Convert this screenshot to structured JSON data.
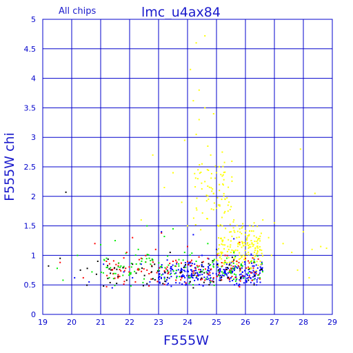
{
  "chart_data": {
    "type": "scatter",
    "title": "lmc_u4ax84",
    "subtitle": "All chips",
    "xlabel": "F555W",
    "ylabel": "F555W chi",
    "xlim": [
      19,
      29
    ],
    "ylim": [
      0,
      5
    ],
    "grid": true,
    "x_ticks": [
      "19",
      "20",
      "21",
      "22",
      "23",
      "24",
      "25",
      "26",
      "27",
      "28",
      "29"
    ],
    "y_ticks": [
      "0",
      "0.5",
      "1",
      "1.5",
      "2",
      "2.5",
      "3",
      "3.5",
      "4",
      "4.5",
      "5"
    ],
    "colors": {
      "axes": "#0000cc",
      "grid": "#0000cc",
      "text": "#1a1acc",
      "chip_red": "#ff0000",
      "chip_green": "#00ee00",
      "chip_blue": "#0000ff",
      "chip_yellow": "#ffff00",
      "black": "#000000"
    },
    "series": [
      {
        "color": "black",
        "points": [
          [
            19.2,
            0.82
          ],
          [
            19.6,
            0.95
          ],
          [
            19.8,
            2.07
          ],
          [
            20.3,
            0.75
          ],
          [
            21.1,
            0.48
          ],
          [
            21.6,
            0.64
          ],
          [
            21.9,
            0.58
          ],
          [
            22.6,
            0.52
          ],
          [
            23.4,
            1.05
          ],
          [
            24.2,
            0.45
          ],
          [
            25.4,
            0.62
          ],
          [
            26.1,
            0.58
          ],
          [
            22.1,
            0.85
          ],
          [
            23.8,
            0.72
          ],
          [
            24.9,
            0.55
          ],
          [
            20.9,
            0.9
          ],
          [
            26.3,
            0.5
          ],
          [
            25.6,
            0.92
          ],
          [
            22.8,
            0.6
          ],
          [
            24.5,
            0.88
          ]
        ]
      },
      {
        "color": "chip_red",
        "points": [
          [
            19.6,
            0.88
          ],
          [
            20.4,
            0.62
          ],
          [
            20.8,
            1.2
          ],
          [
            21.2,
            0.9
          ],
          [
            21.6,
            0.62
          ],
          [
            21.9,
            1.05
          ],
          [
            22.1,
            1.3
          ],
          [
            22.4,
            0.95
          ],
          [
            22.6,
            0.75
          ],
          [
            22.9,
            1.1
          ],
          [
            23.1,
            1.38
          ],
          [
            23.3,
            0.8
          ],
          [
            23.5,
            0.9
          ],
          [
            23.8,
            0.62
          ],
          [
            24.0,
            1.15
          ],
          [
            24.2,
            0.7
          ],
          [
            24.4,
            0.82
          ],
          [
            24.7,
            0.95
          ],
          [
            24.9,
            0.62
          ],
          [
            25.1,
            0.7
          ],
          [
            25.3,
            1.0
          ],
          [
            25.5,
            0.78
          ],
          [
            25.7,
            0.9
          ],
          [
            25.9,
            0.65
          ],
          [
            26.1,
            0.8
          ],
          [
            26.3,
            0.72
          ],
          [
            26.5,
            0.6
          ],
          [
            23.6,
            0.58
          ],
          [
            25.2,
            0.82
          ],
          [
            25.8,
            1.22
          ],
          [
            21.4,
            0.75
          ],
          [
            22.2,
            0.55
          ],
          [
            24.6,
            0.58
          ],
          [
            26.0,
            0.95
          ]
        ]
      },
      {
        "color": "chip_green",
        "points": [
          [
            19.5,
            0.78
          ],
          [
            19.7,
            0.58
          ],
          [
            20.2,
            1.0
          ],
          [
            20.7,
            0.72
          ],
          [
            21.0,
            1.18
          ],
          [
            21.3,
            0.62
          ],
          [
            21.7,
            0.82
          ],
          [
            22.0,
            0.7
          ],
          [
            22.3,
            1.1
          ],
          [
            22.5,
            0.6
          ],
          [
            22.8,
            0.92
          ],
          [
            23.0,
            0.75
          ],
          [
            23.2,
            1.32
          ],
          [
            23.4,
            0.68
          ],
          [
            23.7,
            0.82
          ],
          [
            23.9,
            1.05
          ],
          [
            24.1,
            0.62
          ],
          [
            24.3,
            0.9
          ],
          [
            24.5,
            0.72
          ],
          [
            24.7,
            1.2
          ],
          [
            24.9,
            0.8
          ],
          [
            25.1,
            0.65
          ],
          [
            25.3,
            0.88
          ],
          [
            25.5,
            0.72
          ],
          [
            25.7,
            0.6
          ],
          [
            25.9,
            0.82
          ],
          [
            26.1,
            0.7
          ],
          [
            26.3,
            0.9
          ],
          [
            26.5,
            0.62
          ],
          [
            22.6,
            1.5
          ],
          [
            24.8,
            0.55
          ],
          [
            25.6,
            1.05
          ],
          [
            21.5,
            1.25
          ],
          [
            23.5,
            1.45
          ]
        ]
      },
      {
        "color": "chip_blue",
        "points": [
          [
            20.1,
            0.62
          ],
          [
            20.6,
            0.55
          ],
          [
            21.1,
            0.85
          ],
          [
            21.4,
            0.45
          ],
          [
            21.8,
            0.72
          ],
          [
            22.1,
            0.62
          ],
          [
            22.4,
            0.85
          ],
          [
            22.7,
            0.55
          ],
          [
            23.0,
            0.62
          ],
          [
            23.3,
            0.92
          ],
          [
            23.6,
            0.7
          ],
          [
            23.9,
            0.55
          ],
          [
            24.1,
            0.82
          ],
          [
            24.3,
            0.62
          ],
          [
            24.5,
            1.0
          ],
          [
            24.7,
            0.7
          ],
          [
            24.9,
            0.85
          ],
          [
            25.1,
            0.58
          ],
          [
            25.3,
            0.75
          ],
          [
            25.5,
            0.62
          ],
          [
            25.7,
            0.8
          ],
          [
            25.9,
            0.72
          ],
          [
            26.1,
            0.62
          ],
          [
            26.3,
            0.82
          ],
          [
            26.5,
            0.7
          ],
          [
            26.4,
            0.55
          ],
          [
            25.8,
            0.5
          ],
          [
            24.2,
            1.35
          ],
          [
            25.0,
            1.1
          ],
          [
            25.6,
            1.28
          ],
          [
            23.1,
            1.4
          ],
          [
            26.2,
            1.02
          ],
          [
            24.8,
            0.62
          ],
          [
            25.4,
            0.7
          ]
        ]
      },
      {
        "color": "chip_yellow",
        "points": [
          [
            24.1,
            4.15
          ],
          [
            24.3,
            4.6
          ],
          [
            24.6,
            4.72
          ],
          [
            24.4,
            3.8
          ],
          [
            24.2,
            3.62
          ],
          [
            24.6,
            3.5
          ],
          [
            24.3,
            3.05
          ],
          [
            24.7,
            2.85
          ],
          [
            24.9,
            3.4
          ],
          [
            24.5,
            2.55
          ],
          [
            24.8,
            2.7
          ],
          [
            25.0,
            2.4
          ],
          [
            25.2,
            2.75
          ],
          [
            24.6,
            2.25
          ],
          [
            25.1,
            2.1
          ],
          [
            25.3,
            1.95
          ],
          [
            25.0,
            1.8
          ],
          [
            25.4,
            1.75
          ],
          [
            25.6,
            1.6
          ],
          [
            25.2,
            1.5
          ],
          [
            25.5,
            1.4
          ],
          [
            25.8,
            1.45
          ],
          [
            25.7,
            1.3
          ],
          [
            26.0,
            1.35
          ],
          [
            25.9,
            1.2
          ],
          [
            26.2,
            1.25
          ],
          [
            26.4,
            1.15
          ],
          [
            25.5,
            1.05
          ],
          [
            25.8,
            1.0
          ],
          [
            26.1,
            1.05
          ],
          [
            26.3,
            0.95
          ],
          [
            25.3,
            0.9
          ],
          [
            25.6,
            0.95
          ],
          [
            26.0,
            0.92
          ],
          [
            26.5,
            1.1
          ],
          [
            26.8,
            1.3
          ],
          [
            27.0,
            1.55
          ],
          [
            27.3,
            1.2
          ],
          [
            27.6,
            1.05
          ],
          [
            28.0,
            1.4
          ],
          [
            28.3,
            1.1
          ],
          [
            28.6,
            1.15
          ],
          [
            27.8,
            0.75
          ],
          [
            28.2,
            0.62
          ],
          [
            27.9,
            2.8
          ],
          [
            28.4,
            2.05
          ],
          [
            28.8,
            1.12
          ],
          [
            26.6,
            1.6
          ],
          [
            26.9,
            1.0
          ],
          [
            24.0,
            1.5
          ],
          [
            23.2,
            2.15
          ],
          [
            22.8,
            2.7
          ],
          [
            23.5,
            2.4
          ],
          [
            23.8,
            1.9
          ],
          [
            22.4,
            1.6
          ],
          [
            25.1,
            2.2
          ],
          [
            25.4,
            1.85
          ],
          [
            24.9,
            2.05
          ],
          [
            26.3,
            1.55
          ],
          [
            25.7,
            0.85
          ],
          [
            26.1,
            0.78
          ],
          [
            23.9,
            2.95
          ],
          [
            24.4,
            3.3
          ]
        ]
      }
    ],
    "dense_clouds": [
      {
        "color": "chip_blue",
        "xrange": [
          23.0,
          26.6
        ],
        "yrange": [
          0.45,
          0.95
        ],
        "count": 260
      },
      {
        "color": "chip_red",
        "xrange": [
          21.2,
          26.6
        ],
        "yrange": [
          0.45,
          1.05
        ],
        "count": 110
      },
      {
        "color": "chip_green",
        "xrange": [
          21.0,
          26.6
        ],
        "yrange": [
          0.45,
          1.1
        ],
        "count": 110
      },
      {
        "color": "black",
        "xrange": [
          20.5,
          26.6
        ],
        "yrange": [
          0.45,
          1.0
        ],
        "count": 60
      },
      {
        "color": "chip_yellow",
        "xrange": [
          25.0,
          26.6
        ],
        "yrange": [
          0.7,
          1.6
        ],
        "count": 160
      },
      {
        "color": "chip_yellow",
        "xrange": [
          24.2,
          25.6
        ],
        "yrange": [
          1.4,
          2.7
        ],
        "count": 70
      }
    ]
  }
}
